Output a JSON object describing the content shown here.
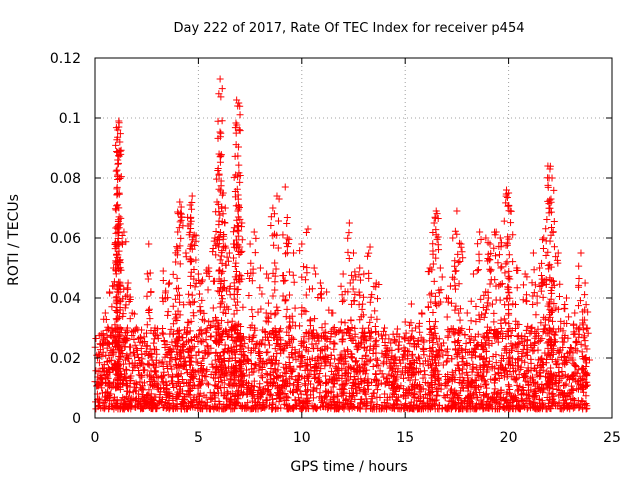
{
  "chart_data": {
    "type": "scatter",
    "title": "Day 222 of 2017, Rate Of TEC Index for receiver p454",
    "xlabel": "GPS time / hours",
    "ylabel": "ROTI / TECUs",
    "xlim": [
      0,
      25
    ],
    "ylim": [
      0,
      0.12
    ],
    "xticks": [
      0,
      5,
      10,
      15,
      20,
      25
    ],
    "yticks": [
      0,
      0.02,
      0.04,
      0.06,
      0.08,
      0.1,
      0.12
    ],
    "xtick_labels": [
      "0",
      "5",
      "10",
      "15",
      "20",
      "25"
    ],
    "ytick_labels": [
      "0",
      "0.02",
      "0.04",
      "0.06",
      "0.08",
      "0.1",
      "0.12"
    ],
    "grid": true,
    "marker": "+",
    "color": "#ff0000",
    "series": [
      {
        "name": "ROTI",
        "points": [
          [
            0.1,
            0.012
          ],
          [
            0.3,
            0.028
          ],
          [
            0.5,
            0.035
          ],
          [
            0.7,
            0.042
          ],
          [
            0.9,
            0.05
          ],
          [
            1.0,
            0.058
          ],
          [
            1.1,
            0.063
          ],
          [
            1.1,
            0.096
          ],
          [
            1.15,
            0.097
          ],
          [
            1.2,
            0.092
          ],
          [
            1.1,
            0.086
          ],
          [
            1.1,
            0.081
          ],
          [
            1.15,
            0.099
          ],
          [
            1.4,
            0.062
          ],
          [
            1.6,
            0.045
          ],
          [
            1.8,
            0.035
          ],
          [
            2.0,
            0.03
          ],
          [
            2.3,
            0.025
          ],
          [
            2.6,
            0.058
          ],
          [
            2.9,
            0.03
          ],
          [
            3.3,
            0.049
          ],
          [
            3.6,
            0.045
          ],
          [
            3.9,
            0.052
          ],
          [
            4.0,
            0.062
          ],
          [
            4.1,
            0.072
          ],
          [
            4.2,
            0.067
          ],
          [
            4.5,
            0.064
          ],
          [
            4.6,
            0.071
          ],
          [
            4.7,
            0.074
          ],
          [
            4.8,
            0.061
          ],
          [
            5.0,
            0.048
          ],
          [
            5.2,
            0.046
          ],
          [
            5.5,
            0.05
          ],
          [
            5.8,
            0.06
          ],
          [
            5.9,
            0.072
          ],
          [
            6.0,
            0.088
          ],
          [
            6.05,
            0.113
          ],
          [
            6.1,
            0.079
          ],
          [
            6.2,
            0.075
          ],
          [
            6.3,
            0.07
          ],
          [
            6.5,
            0.055
          ],
          [
            6.7,
            0.058
          ],
          [
            6.8,
            0.081
          ],
          [
            6.85,
            0.106
          ],
          [
            6.9,
            0.104
          ],
          [
            6.95,
            0.105
          ],
          [
            7.1,
            0.065
          ],
          [
            7.5,
            0.058
          ],
          [
            7.7,
            0.062
          ],
          [
            8.0,
            0.05
          ],
          [
            8.3,
            0.048
          ],
          [
            8.6,
            0.07
          ],
          [
            8.8,
            0.074
          ],
          [
            9.2,
            0.077
          ],
          [
            9.3,
            0.06
          ],
          [
            9.6,
            0.055
          ],
          [
            10.0,
            0.058
          ],
          [
            10.3,
            0.063
          ],
          [
            10.6,
            0.05
          ],
          [
            10.9,
            0.045
          ],
          [
            11.2,
            0.042
          ],
          [
            11.5,
            0.035
          ],
          [
            12.0,
            0.048
          ],
          [
            12.3,
            0.065
          ],
          [
            12.5,
            0.055
          ],
          [
            12.8,
            0.05
          ],
          [
            13.0,
            0.048
          ],
          [
            13.3,
            0.057
          ],
          [
            13.6,
            0.045
          ],
          [
            14.0,
            0.03
          ],
          [
            14.3,
            0.025
          ],
          [
            14.6,
            0.028
          ],
          [
            15.0,
            0.032
          ],
          [
            15.3,
            0.038
          ],
          [
            15.5,
            0.03
          ],
          [
            15.8,
            0.035
          ],
          [
            16.2,
            0.05
          ],
          [
            16.4,
            0.065
          ],
          [
            16.5,
            0.069
          ],
          [
            16.7,
            0.05
          ],
          [
            17.0,
            0.04
          ],
          [
            17.3,
            0.06
          ],
          [
            17.5,
            0.069
          ],
          [
            17.7,
            0.058
          ],
          [
            18.0,
            0.035
          ],
          [
            18.3,
            0.048
          ],
          [
            18.6,
            0.062
          ],
          [
            18.9,
            0.06
          ],
          [
            19.1,
            0.058
          ],
          [
            19.4,
            0.062
          ],
          [
            19.6,
            0.06
          ],
          [
            19.9,
            0.076
          ],
          [
            20.0,
            0.075
          ],
          [
            20.1,
            0.069
          ],
          [
            20.4,
            0.05
          ],
          [
            20.8,
            0.048
          ],
          [
            21.2,
            0.055
          ],
          [
            21.5,
            0.05
          ],
          [
            21.7,
            0.06
          ],
          [
            21.9,
            0.084
          ],
          [
            22.0,
            0.083
          ],
          [
            22.05,
            0.073
          ],
          [
            22.1,
            0.08
          ],
          [
            22.4,
            0.055
          ],
          [
            22.8,
            0.04
          ],
          [
            23.2,
            0.035
          ],
          [
            23.5,
            0.055
          ],
          [
            23.7,
            0.045
          ],
          [
            23.8,
            0.03
          ]
        ],
        "dense_band": {
          "x_range": [
            0,
            23.8
          ],
          "y_range": [
            0.003,
            0.03
          ],
          "description_free": true
        }
      }
    ]
  }
}
